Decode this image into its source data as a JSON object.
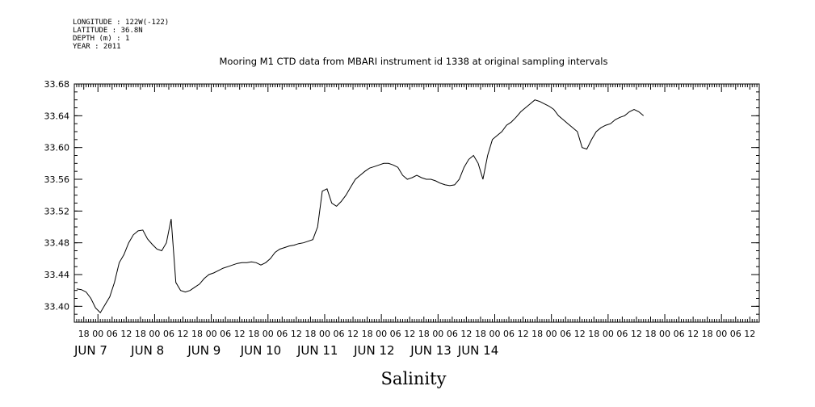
{
  "meta": {
    "longitude": "LONGITUDE : 122W(-122)",
    "latitude": "LATITUDE : 36.8N",
    "depth": "DEPTH (m) : 1",
    "year": "YEAR : 2011"
  },
  "chart_data": {
    "type": "line",
    "title": "Mooring M1 CTD data from MBARI instrument id 1338 at original sampling intervals",
    "xlabel": "Salinity",
    "ylabel": "",
    "ylim": [
      33.38,
      33.68
    ],
    "yticks": [
      "33.68",
      "33.64",
      "33.60",
      "33.56",
      "33.52",
      "33.48",
      "33.44",
      "33.40"
    ],
    "grid": false,
    "x_range_hours": [
      -10,
      280
    ],
    "x_hour_ticks": [
      {
        "h": -6,
        "label": "18"
      },
      {
        "h": 0,
        "label": "00"
      },
      {
        "h": 6,
        "label": "06"
      },
      {
        "h": 12,
        "label": "12"
      },
      {
        "h": 18,
        "label": "18"
      },
      {
        "h": 24,
        "label": "00"
      },
      {
        "h": 30,
        "label": "06"
      },
      {
        "h": 36,
        "label": "12"
      },
      {
        "h": 42,
        "label": "18"
      },
      {
        "h": 48,
        "label": "00"
      },
      {
        "h": 54,
        "label": "06"
      },
      {
        "h": 60,
        "label": "12"
      },
      {
        "h": 66,
        "label": "18"
      },
      {
        "h": 72,
        "label": "00"
      },
      {
        "h": 78,
        "label": "06"
      },
      {
        "h": 84,
        "label": "12"
      },
      {
        "h": 90,
        "label": "18"
      },
      {
        "h": 96,
        "label": "00"
      },
      {
        "h": 102,
        "label": "06"
      },
      {
        "h": 108,
        "label": "12"
      },
      {
        "h": 114,
        "label": "18"
      },
      {
        "h": 120,
        "label": "00"
      },
      {
        "h": 126,
        "label": "06"
      },
      {
        "h": 132,
        "label": "12"
      },
      {
        "h": 138,
        "label": "18"
      },
      {
        "h": 144,
        "label": "00"
      },
      {
        "h": 150,
        "label": "06"
      },
      {
        "h": 156,
        "label": "12"
      },
      {
        "h": 162,
        "label": "18"
      },
      {
        "h": 168,
        "label": "00"
      },
      {
        "h": 174,
        "label": "06"
      },
      {
        "h": 180,
        "label": "12"
      },
      {
        "h": 186,
        "label": "18"
      },
      {
        "h": 192,
        "label": "00"
      },
      {
        "h": 198,
        "label": "06"
      },
      {
        "h": 204,
        "label": "12"
      },
      {
        "h": 210,
        "label": "18"
      },
      {
        "h": 216,
        "label": "00"
      },
      {
        "h": 222,
        "label": "06"
      },
      {
        "h": 228,
        "label": "12"
      },
      {
        "h": 234,
        "label": "18"
      },
      {
        "h": 240,
        "label": "00"
      },
      {
        "h": 246,
        "label": "06"
      },
      {
        "h": 252,
        "label": "12"
      },
      {
        "h": 258,
        "label": "18"
      },
      {
        "h": 264,
        "label": "00"
      },
      {
        "h": 270,
        "label": "06"
      },
      {
        "h": 276,
        "label": "12"
      }
    ],
    "day_labels": [
      {
        "h": -3,
        "label": "JUN  7"
      },
      {
        "h": 21,
        "label": "JUN  8"
      },
      {
        "h": 45,
        "label": "JUN  9"
      },
      {
        "h": 69,
        "label": "JUN 10"
      },
      {
        "h": 93,
        "label": "JUN 11"
      },
      {
        "h": 117,
        "label": "JUN 12"
      },
      {
        "h": 141,
        "label": "JUN 13"
      },
      {
        "h": 161,
        "label": "JUN 14"
      }
    ],
    "series": [
      {
        "x_start_hour": -9,
        "x_step_hour": 2,
        "values": [
          33.422,
          33.421,
          33.418,
          33.41,
          33.398,
          33.392,
          33.402,
          33.412,
          33.43,
          33.455,
          33.465,
          33.48,
          33.49,
          33.495,
          33.496,
          33.485,
          33.478,
          33.472,
          33.47,
          33.48,
          33.51,
          33.43,
          33.42,
          33.418,
          33.42,
          33.424,
          33.428,
          33.435,
          33.44,
          33.442,
          33.445,
          33.448,
          33.45,
          33.452,
          33.454,
          33.455,
          33.455,
          33.456,
          33.455,
          33.452,
          33.455,
          33.46,
          33.468,
          33.472,
          33.474,
          33.476,
          33.477,
          33.479,
          33.48,
          33.482,
          33.484,
          33.5,
          33.545,
          33.548,
          33.53,
          33.526,
          33.532,
          33.54,
          33.55,
          33.56,
          33.565,
          33.57,
          33.574,
          33.576,
          33.578,
          33.58,
          33.58,
          33.578,
          33.575,
          33.565,
          33.56,
          33.562,
          33.565,
          33.562,
          33.56,
          33.56,
          33.558,
          33.555,
          33.553,
          33.552,
          33.553,
          33.56,
          33.575,
          33.585,
          33.59,
          33.58,
          33.56,
          33.59,
          33.61,
          33.615,
          33.62,
          33.628,
          33.632,
          33.638,
          33.645,
          33.65,
          33.655,
          33.66,
          33.658,
          33.655,
          33.652,
          33.648,
          33.64,
          33.635,
          33.63,
          33.625,
          33.62,
          33.6,
          33.598,
          33.61,
          33.62,
          33.625,
          33.628,
          33.63,
          33.635,
          33.638,
          33.64,
          33.645,
          33.648,
          33.645,
          33.64
        ]
      }
    ]
  }
}
